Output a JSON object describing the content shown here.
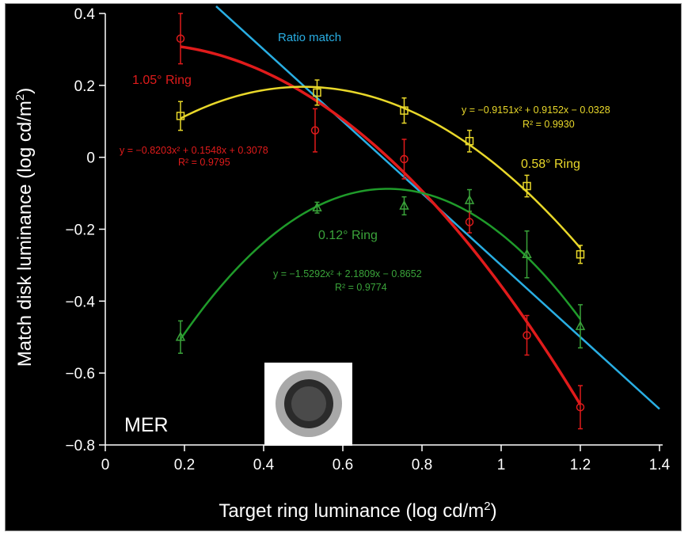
{
  "chart_data": {
    "type": "scatter",
    "panel_label": "MER",
    "xlabel_main": "Target ring luminance (log cd/m",
    "xlabel_sup": "2",
    "xlabel_tail": ")",
    "ylabel_main": "Match disk luminance (log cd/m",
    "ylabel_sup": "2",
    "ylabel_tail": ")",
    "xlim": [
      0,
      1.4
    ],
    "ylim": [
      -0.8,
      0.4
    ],
    "xticks": [
      0,
      0.2,
      0.4,
      0.6,
      0.8,
      1,
      1.2,
      1.4
    ],
    "xtick_labels": [
      "0",
      "0.2",
      "0.4",
      "0.6",
      "0.8",
      "1",
      "1.2",
      "1.4"
    ],
    "yticks": [
      -0.8,
      -0.6,
      -0.4,
      -0.2,
      0,
      0.2,
      0.4
    ],
    "ytick_labels": [
      "−0.8",
      "−0.6",
      "−0.4",
      "−0.2",
      "0",
      "0.2",
      "0.4"
    ],
    "ratio_match": {
      "label": "Ratio match",
      "color": "#29aee3",
      "slope": -1,
      "intercept": 0.7
    },
    "series": [
      {
        "name": "1.05° Ring",
        "color": "#e01b1b",
        "marker": "circle",
        "x": [
          0.19,
          0.53,
          0.755,
          0.92,
          1.065,
          1.2
        ],
        "y": [
          0.33,
          0.075,
          -0.005,
          -0.18,
          -0.495,
          -0.695
        ],
        "err": [
          0.07,
          0.06,
          0.055,
          0.03,
          0.055,
          0.06
        ],
        "fit": {
          "a": -0.8203,
          "b": 0.1548,
          "c": 0.3078,
          "xmin": 0.19,
          "xmax": 1.2,
          "color": "#e01b1b"
        },
        "equation": "y = −0.8203x² + 0.1548x + 0.3078",
        "r2_label": "R² = 0.9795"
      },
      {
        "name": "0.58° Ring",
        "color": "#e9d82a",
        "marker": "square",
        "x": [
          0.19,
          0.535,
          0.755,
          0.92,
          1.065,
          1.2
        ],
        "y": [
          0.115,
          0.18,
          0.13,
          0.045,
          -0.08,
          -0.27
        ],
        "err": [
          0.04,
          0.035,
          0.035,
          0.03,
          0.03,
          0.025
        ],
        "fit": {
          "a": -0.9151,
          "b": 0.9152,
          "c": -0.0328,
          "xmin": 0.19,
          "xmax": 1.2,
          "color": "#e9d82a"
        },
        "equation": "y = −0.9151x² + 0.9152x − 0.0328",
        "r2_label": "R² = 0.9930"
      },
      {
        "name": "0.12° Ring",
        "color": "#3aa33a",
        "marker": "triangle",
        "x": [
          0.19,
          0.535,
          0.755,
          0.92,
          1.065,
          1.2
        ],
        "y": [
          -0.5,
          -0.14,
          -0.135,
          -0.12,
          -0.27,
          -0.47
        ],
        "err": [
          0.045,
          0.015,
          0.025,
          0.03,
          0.065,
          0.06
        ],
        "fit": {
          "a": -1.5292,
          "b": 2.1809,
          "c": -0.8652,
          "xmin": 0.19,
          "xmax": 1.2,
          "color": "#1f9b2a"
        },
        "equation": "y = −1.5292x² + 2.1809x − 0.8652",
        "r2_label": "R² = 0.9774"
      }
    ],
    "stimulus_icon": "concentric-disk-ring-icon"
  }
}
